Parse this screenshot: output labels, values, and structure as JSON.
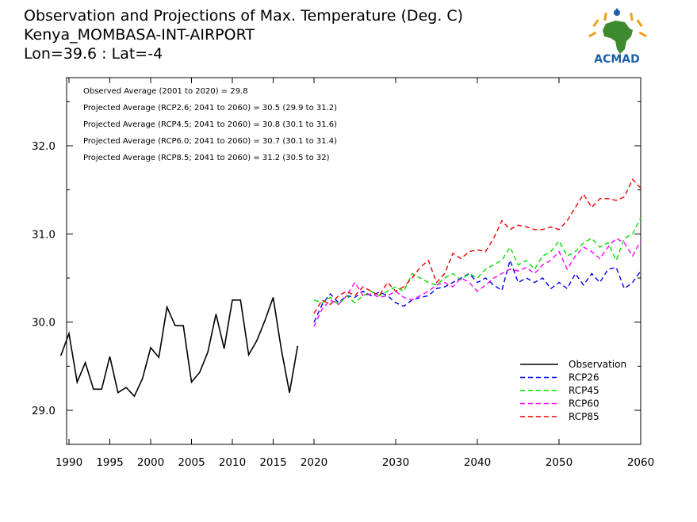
{
  "header": {
    "title": "Observation and Projections of Max. Temperature (Deg. C)",
    "station": "Kenya_MOMBASA-INT-AIRPORT",
    "coords": "Lon=39.6 : Lat=-4"
  },
  "logo": {
    "text": "ACMAD",
    "icon": "africa-map-icon",
    "colors": {
      "blue": "#1f5fa8",
      "orange": "#f0a020",
      "green": "#3d8b2e"
    }
  },
  "notes": [
    "Observed Average (2001 to 2020) = 29.8",
    "Projected Average (RCP2.6; 2041 to 2060) = 30.5 (29.9 to 31.2)",
    "Projected Average (RCP4.5; 2041 to 2060) = 30.8 (30.1 to 31.6)",
    "Projected Average (RCP6.0; 2041 to 2060) = 30.7 (30.1 to 31.4)",
    "Projected Average (RCP8.5; 2041 to 2060) = 31.2 (30.5 to 32)"
  ],
  "chart_data": {
    "type": "line",
    "title": "Observation and Projections of Max. Temperature (Deg. C)",
    "xlim": [
      1989,
      2060
    ],
    "ylim": [
      28.6,
      32.75
    ],
    "xticks": [
      1990,
      1995,
      2000,
      2005,
      2010,
      2015,
      2020,
      2030,
      2040,
      2050,
      2060
    ],
    "yticks": [
      29.0,
      30.0,
      31.0,
      32.0
    ],
    "ytick_labels": [
      "29.0",
      "30.0",
      "31.0",
      "32.0"
    ],
    "grid": false,
    "legend_position": "bottom-right",
    "series": [
      {
        "name": "Observation",
        "color": "#000000",
        "dash": "solid",
        "x": [
          1989,
          1990,
          1991,
          1992,
          1993,
          1994,
          1995,
          1996,
          1997,
          1998,
          1999,
          2000,
          2001,
          2002,
          2003,
          2004,
          2005,
          2006,
          2007,
          2008,
          2009,
          2010,
          2011,
          2012,
          2013,
          2014,
          2015,
          2016,
          2017,
          2018,
          2019
        ],
        "y": [
          29.62,
          29.87,
          29.32,
          29.54,
          29.24,
          29.24,
          29.61,
          29.2,
          29.26,
          29.16,
          29.36,
          29.71,
          29.6,
          30.17,
          29.96,
          29.96,
          29.32,
          29.43,
          29.66,
          30.09,
          29.7,
          30.25,
          30.25,
          29.63,
          29.79,
          30.02,
          30.28,
          29.69,
          29.2,
          29.73,
          null
        ]
      },
      {
        "name": "RCP26",
        "color": "#0000ee",
        "dash": "dashed",
        "x": [
          2020,
          2021,
          2022,
          2023,
          2024,
          2025,
          2026,
          2027,
          2028,
          2029,
          2030,
          2031,
          2032,
          2033,
          2034,
          2035,
          2036,
          2037,
          2038,
          2039,
          2040,
          2041,
          2042,
          2043,
          2044,
          2045,
          2046,
          2047,
          2048,
          2049,
          2050,
          2051,
          2052,
          2053,
          2054,
          2055,
          2056,
          2057,
          2058,
          2059,
          2060
        ],
        "y": [
          30.0,
          30.2,
          30.32,
          30.22,
          30.3,
          30.28,
          30.35,
          30.3,
          30.34,
          30.3,
          30.22,
          30.18,
          30.25,
          30.28,
          30.3,
          30.38,
          30.4,
          30.45,
          30.5,
          30.55,
          30.45,
          30.5,
          30.42,
          30.36,
          30.7,
          30.45,
          30.5,
          30.45,
          30.5,
          30.38,
          30.45,
          30.38,
          30.55,
          30.42,
          30.55,
          30.45,
          30.6,
          30.62,
          30.38,
          30.45,
          30.58
        ]
      },
      {
        "name": "RCP45",
        "color": "#00dd00",
        "dash": "dashed",
        "x": [
          2020,
          2021,
          2022,
          2023,
          2024,
          2025,
          2026,
          2027,
          2028,
          2029,
          2030,
          2031,
          2032,
          2033,
          2034,
          2035,
          2036,
          2037,
          2038,
          2039,
          2040,
          2041,
          2042,
          2043,
          2044,
          2045,
          2046,
          2047,
          2048,
          2049,
          2050,
          2051,
          2052,
          2053,
          2054,
          2055,
          2056,
          2057,
          2058,
          2059,
          2060
        ],
        "y": [
          30.25,
          30.22,
          30.28,
          30.2,
          30.3,
          30.22,
          30.3,
          30.35,
          30.3,
          30.35,
          30.4,
          30.35,
          30.55,
          30.5,
          30.45,
          30.42,
          30.5,
          30.55,
          30.48,
          30.55,
          30.5,
          30.6,
          30.65,
          30.7,
          30.85,
          30.65,
          30.7,
          30.6,
          30.75,
          30.8,
          30.92,
          30.75,
          30.8,
          30.9,
          30.95,
          30.85,
          30.9,
          30.7,
          30.95,
          31.0,
          31.18
        ]
      },
      {
        "name": "RCP60",
        "color": "#ff00ff",
        "dash": "dashed",
        "x": [
          2020,
          2021,
          2022,
          2023,
          2024,
          2025,
          2026,
          2027,
          2028,
          2029,
          2030,
          2031,
          2032,
          2033,
          2034,
          2035,
          2036,
          2037,
          2038,
          2039,
          2040,
          2041,
          2042,
          2043,
          2044,
          2045,
          2046,
          2047,
          2048,
          2049,
          2050,
          2051,
          2052,
          2053,
          2054,
          2055,
          2056,
          2057,
          2058,
          2059,
          2060
        ],
        "y": [
          29.95,
          30.15,
          30.25,
          30.2,
          30.3,
          30.45,
          30.3,
          30.32,
          30.28,
          30.3,
          30.35,
          30.28,
          30.25,
          30.3,
          30.35,
          30.42,
          30.45,
          30.4,
          30.5,
          30.45,
          30.35,
          30.42,
          30.5,
          30.55,
          30.6,
          30.58,
          30.62,
          30.55,
          30.65,
          30.7,
          30.8,
          30.6,
          30.75,
          30.85,
          30.8,
          30.72,
          30.85,
          30.95,
          30.9,
          30.75,
          30.92
        ]
      },
      {
        "name": "RCP85",
        "color": "#ee0000",
        "dash": "dashed",
        "x": [
          2020,
          2021,
          2022,
          2023,
          2024,
          2025,
          2026,
          2027,
          2028,
          2029,
          2030,
          2031,
          2032,
          2033,
          2034,
          2035,
          2036,
          2037,
          2038,
          2039,
          2040,
          2041,
          2042,
          2043,
          2044,
          2045,
          2046,
          2047,
          2048,
          2049,
          2050,
          2051,
          2052,
          2053,
          2054,
          2055,
          2056,
          2057,
          2058,
          2059,
          2060
        ],
        "y": [
          30.1,
          30.25,
          30.2,
          30.3,
          30.35,
          30.3,
          30.4,
          30.35,
          30.3,
          30.45,
          30.35,
          30.4,
          30.5,
          30.62,
          30.7,
          30.45,
          30.55,
          30.78,
          30.72,
          30.8,
          30.82,
          30.8,
          30.95,
          31.15,
          31.05,
          31.1,
          31.08,
          31.05,
          31.05,
          31.08,
          31.05,
          31.15,
          31.3,
          31.45,
          31.3,
          31.4,
          31.4,
          31.38,
          31.42,
          31.62,
          31.52
        ]
      }
    ]
  }
}
